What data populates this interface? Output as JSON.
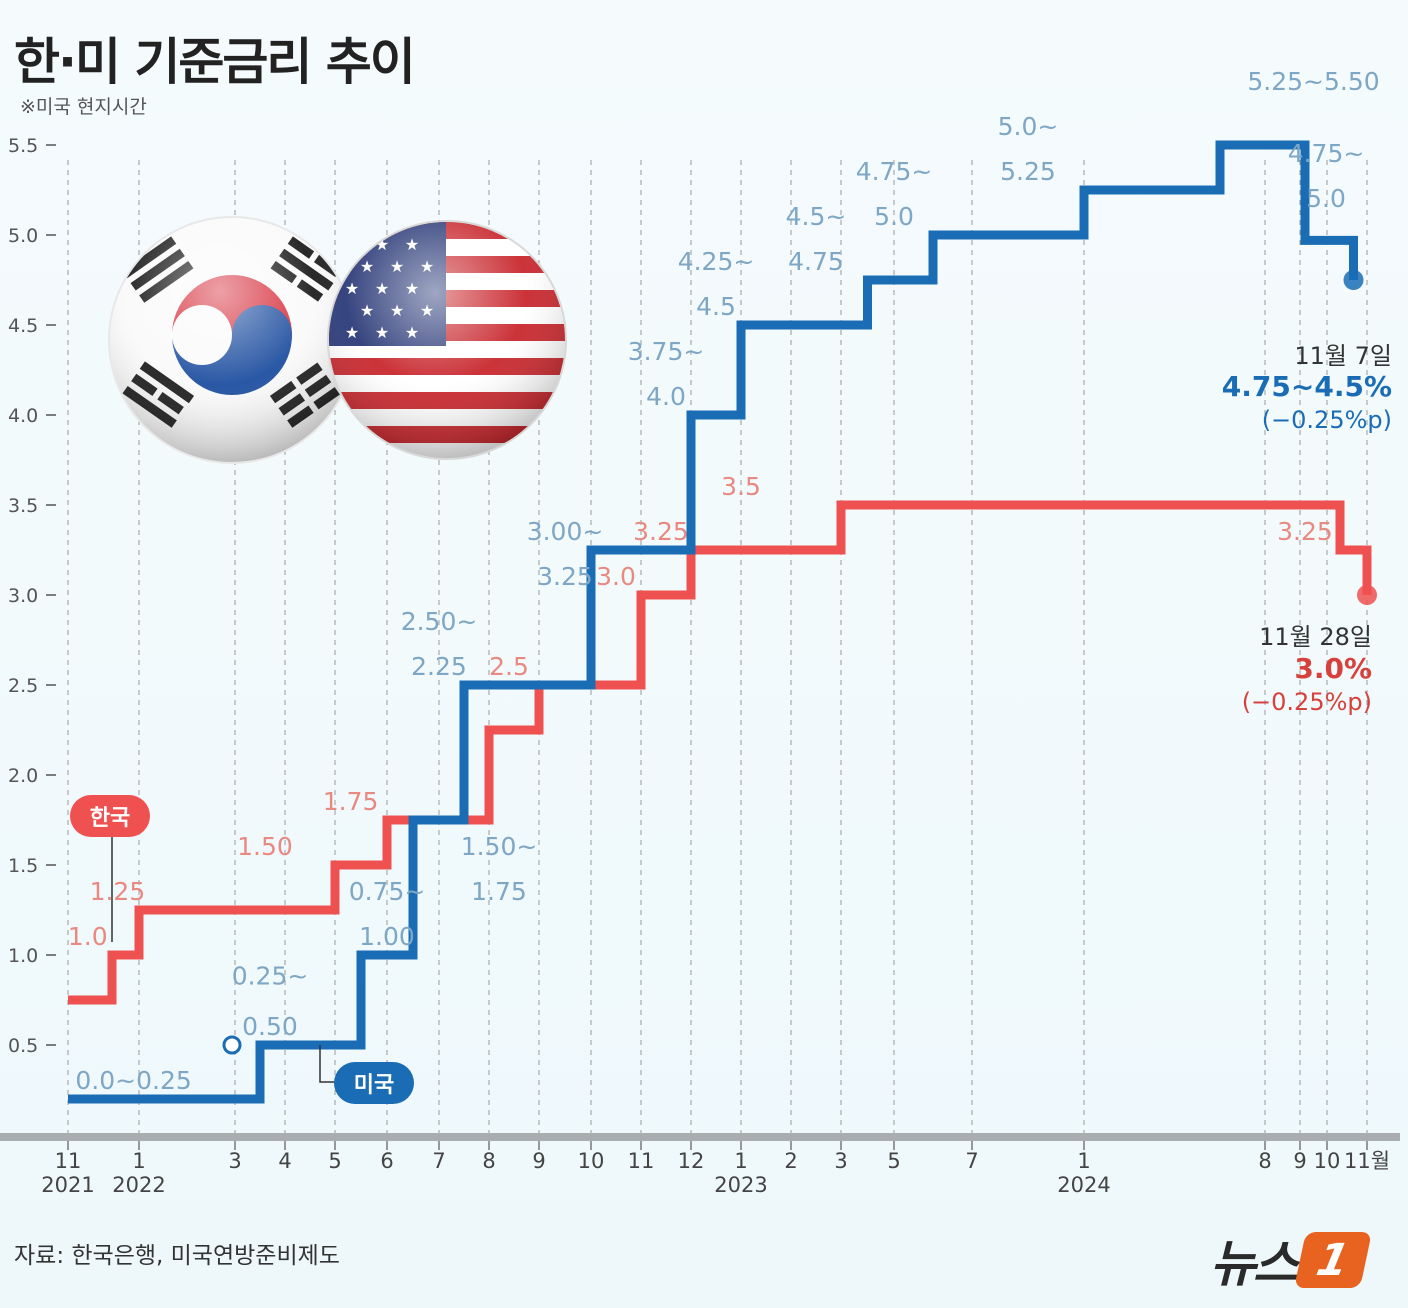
{
  "title": "한·미 기준금리 추이",
  "note": "※미국 현지시간",
  "source": "자료: 한국은행, 미국연방준비제도",
  "logo": {
    "text": "뉴스",
    "badge": "1"
  },
  "colors": {
    "korea": "#ef5150",
    "usa": "#1a6db5",
    "korea_label": "#e88a82",
    "usa_label": "#7ea6c5",
    "axis": "#555555"
  },
  "icons": [
    "korea-flag-icon",
    "usa-flag-icon"
  ],
  "chart_data": {
    "type": "line",
    "step": true,
    "ylim": [
      0,
      5.5
    ],
    "yticks": [
      "0.5",
      "1.0",
      "1.5",
      "2.0",
      "2.5",
      "3.0",
      "3.5",
      "4.0",
      "4.5",
      "5.0",
      "5.5"
    ],
    "x_ticks": [
      {
        "label": "11",
        "year": "2021"
      },
      {
        "label": "1",
        "year": "2022"
      },
      {
        "label": "3"
      },
      {
        "label": "4"
      },
      {
        "label": "5"
      },
      {
        "label": "6"
      },
      {
        "label": "7"
      },
      {
        "label": "8"
      },
      {
        "label": "9"
      },
      {
        "label": "10"
      },
      {
        "label": "11"
      },
      {
        "label": "12"
      },
      {
        "label": "1",
        "year": "2023"
      },
      {
        "label": "2"
      },
      {
        "label": "3"
      },
      {
        "label": "5"
      },
      {
        "label": "7"
      },
      {
        "label": "1",
        "year": "2024"
      },
      {
        "label": "8"
      },
      {
        "label": "9"
      },
      {
        "label": "10"
      },
      {
        "label": "11월"
      }
    ],
    "series": [
      {
        "name": "한국",
        "steps": [
          {
            "x": 0,
            "y": 0.75
          },
          {
            "x": 1,
            "y": 1.0
          },
          {
            "x": 2,
            "y": 1.25
          },
          {
            "x": 5,
            "y": 1.5
          },
          {
            "x": 6,
            "y": 1.75
          },
          {
            "x": 8,
            "y": 2.25
          },
          {
            "x": 9,
            "y": 2.5
          },
          {
            "x": 11,
            "y": 3.0
          },
          {
            "x": 12,
            "y": 3.25
          },
          {
            "x": 15,
            "y": 3.5
          },
          {
            "x": 28,
            "y": 3.25
          },
          {
            "x": 29,
            "y": 3.0
          }
        ],
        "labels": [
          {
            "text": "1.0",
            "x": 0.45,
            "y": 1.0
          },
          {
            "text": "1.25",
            "x": 1.2,
            "y": 1.25
          },
          {
            "text": "1.50",
            "x": 3.6,
            "y": 1.5
          },
          {
            "text": "1.75",
            "x": 5.3,
            "y": 1.75
          },
          {
            "text": "2.5",
            "x": 8.4,
            "y": 2.5
          },
          {
            "text": "3.0",
            "x": 10.5,
            "y": 3.0
          },
          {
            "text": "3.25",
            "x": 11.4,
            "y": 3.25
          },
          {
            "text": "3.5",
            "x": 13.0,
            "y": 3.5
          },
          {
            "text": "3.25",
            "x": 27.0,
            "y": 3.25
          }
        ],
        "callout": {
          "date": "11월 28일",
          "rate": "3.0%",
          "change": "(−0.25%p)"
        }
      },
      {
        "name": "미국",
        "steps": [
          {
            "x": 0,
            "y": 0.2
          },
          {
            "x": 3.5,
            "y": 0.5
          },
          {
            "x": 5.5,
            "y": 1.0
          },
          {
            "x": 6.5,
            "y": 1.75
          },
          {
            "x": 7.5,
            "y": 2.5
          },
          {
            "x": 10,
            "y": 3.25
          },
          {
            "x": 12,
            "y": 4.0
          },
          {
            "x": 13,
            "y": 4.5
          },
          {
            "x": 15.5,
            "y": 4.75
          },
          {
            "x": 16.5,
            "y": 5.0
          },
          {
            "x": 18,
            "y": 5.25
          },
          {
            "x": 19.5,
            "y": 5.5
          },
          {
            "x": 27,
            "y": 4.97
          },
          {
            "x": 28.5,
            "y": 4.75
          }
        ],
        "labels": [
          {
            "text": "0.0~0.25",
            "x": 1.8,
            "y": 0.2
          },
          {
            "text": "0.25~",
            "x": 3.7,
            "y": 0.78
          },
          {
            "text": "0.50",
            "x": 3.7,
            "y": 0.5
          },
          {
            "text": "0.75~",
            "x": 6.0,
            "y": 1.25
          },
          {
            "text": "1.00",
            "x": 6.0,
            "y": 1.0
          },
          {
            "text": "1.50~",
            "x": 8.2,
            "y": 1.5
          },
          {
            "text": "1.75",
            "x": 8.2,
            "y": 1.25
          },
          {
            "text": "2.50~",
            "x": 7.0,
            "y": 2.75
          },
          {
            "text": "2.25",
            "x": 7.0,
            "y": 2.5
          },
          {
            "text": "3.00~",
            "x": 9.5,
            "y": 3.25
          },
          {
            "text": "3.25",
            "x": 9.5,
            "y": 3.0
          },
          {
            "text": "3.75~",
            "x": 11.5,
            "y": 4.25
          },
          {
            "text": "4.0",
            "x": 11.5,
            "y": 4.0
          },
          {
            "text": "4.25~",
            "x": 12.5,
            "y": 4.75
          },
          {
            "text": "4.5",
            "x": 12.5,
            "y": 4.5
          },
          {
            "text": "4.5~",
            "x": 14.5,
            "y": 5.0
          },
          {
            "text": "4.75",
            "x": 14.5,
            "y": 4.75
          },
          {
            "text": "4.75~",
            "x": 16.0,
            "y": 5.25
          },
          {
            "text": "5.0",
            "x": 16.0,
            "y": 5.0
          },
          {
            "text": "5.0~",
            "x": 17.5,
            "y": 5.5
          },
          {
            "text": "5.25",
            "x": 17.5,
            "y": 5.25
          },
          {
            "text": "5.25~5.50",
            "x": 21.5,
            "y": 5.75
          },
          {
            "text": "4.75~",
            "x": 27.6,
            "y": 5.35
          },
          {
            "text": "5.0",
            "x": 27.6,
            "y": 5.1
          }
        ],
        "callout": {
          "date": "11월 7일",
          "rate": "4.75~4.5%",
          "change": "(−0.25%p)"
        }
      }
    ]
  }
}
